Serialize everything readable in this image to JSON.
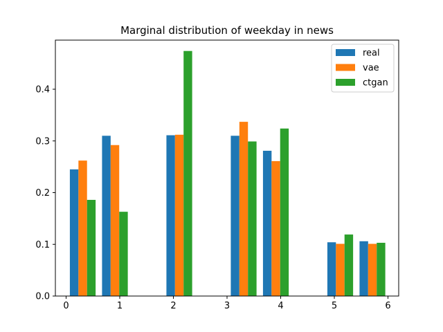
{
  "chart_data": {
    "type": "bar",
    "title": "Marginal distribution of weekday in news",
    "xlabel": "",
    "ylabel": "",
    "xlim": [
      -0.2,
      6.2
    ],
    "ylim": [
      0,
      0.495
    ],
    "x_ticks": [
      0,
      1,
      2,
      3,
      4,
      5,
      6
    ],
    "y_ticks": [
      0.0,
      0.1,
      0.2,
      0.3,
      0.4
    ],
    "legend_position": "top-right",
    "grid": false,
    "series": [
      {
        "name": "real",
        "color": "#1f77b4",
        "x_left": [
          0.07,
          0.67,
          1.87,
          3.07,
          3.67,
          4.87,
          5.47
        ],
        "values": [
          0.245,
          0.31,
          0.311,
          0.31,
          0.281,
          0.104,
          0.106
        ]
      },
      {
        "name": "vae",
        "color": "#ff7f0e",
        "x_left": [
          0.23,
          0.83,
          2.03,
          3.23,
          3.83,
          5.03,
          5.63
        ],
        "values": [
          0.262,
          0.292,
          0.312,
          0.337,
          0.261,
          0.101,
          0.101
        ]
      },
      {
        "name": "ctgan",
        "color": "#2ca02c",
        "x_left": [
          0.39,
          0.99,
          2.19,
          3.39,
          3.99,
          5.19,
          5.79
        ],
        "values": [
          0.186,
          0.163,
          0.474,
          0.299,
          0.324,
          0.119,
          0.103
        ]
      }
    ],
    "bar_width": 0.16
  }
}
